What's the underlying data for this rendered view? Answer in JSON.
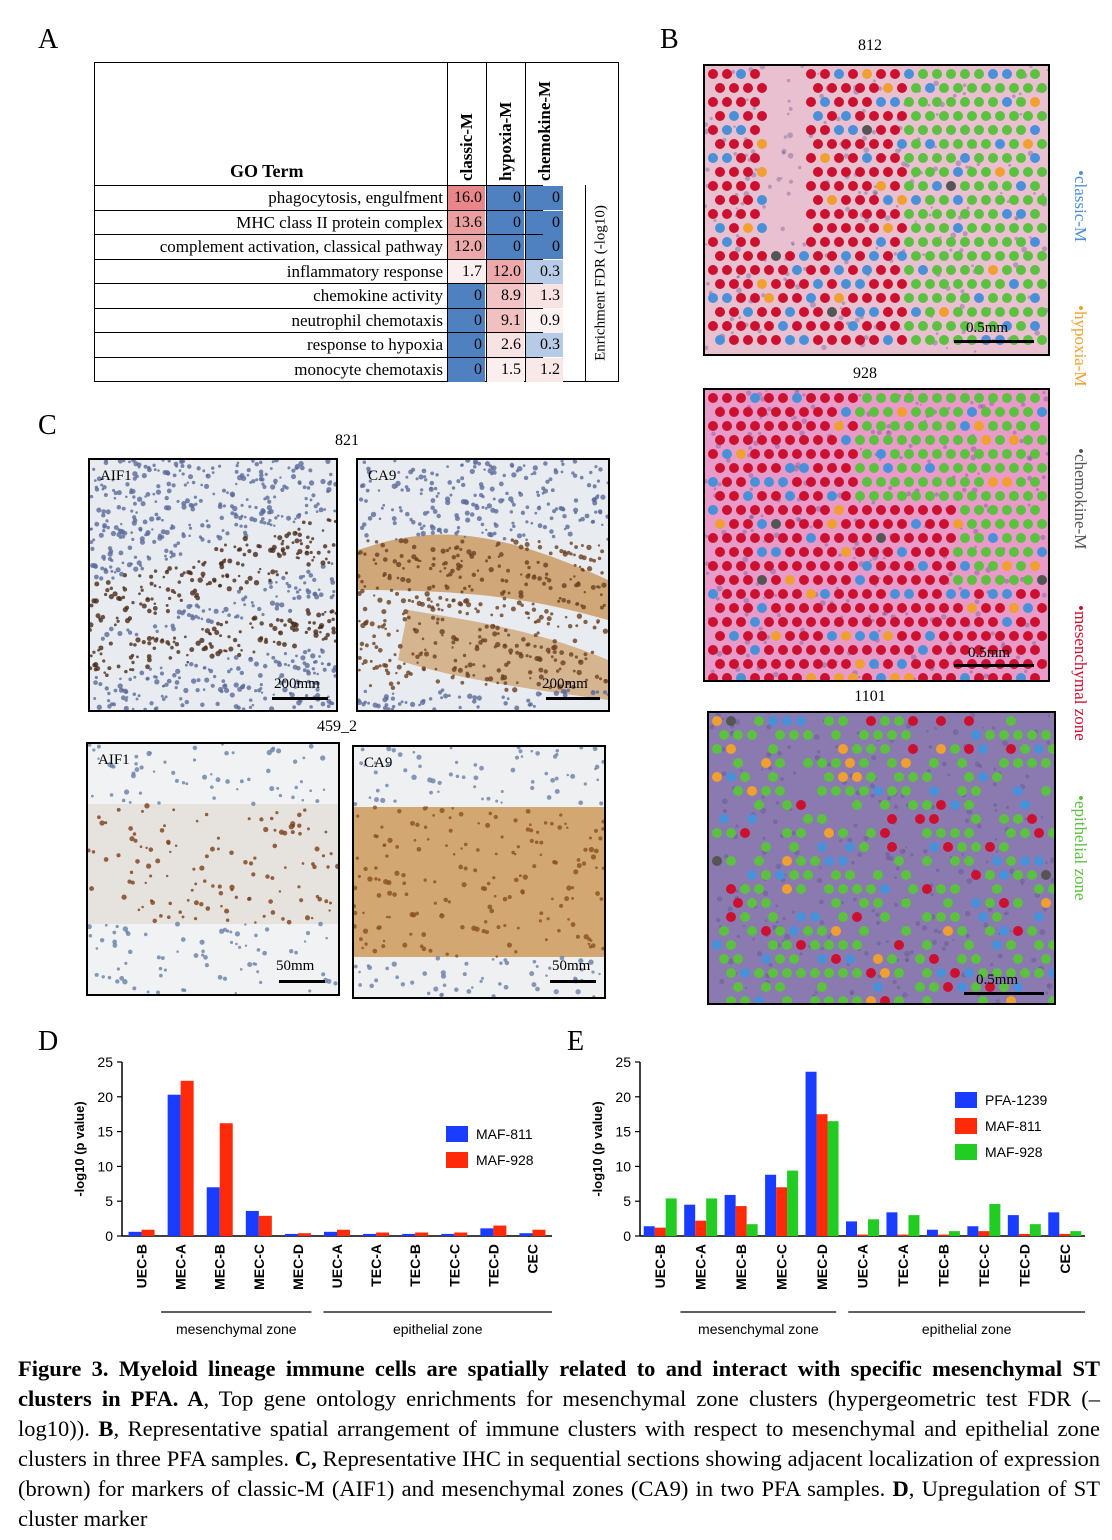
{
  "panels": {
    "A": "A",
    "B": "B",
    "C": "C",
    "D": "D",
    "E": "E"
  },
  "panelA": {
    "header_term": "GO Term",
    "columns": [
      "classic-M",
      "hypoxia-M",
      "chemokine-M"
    ],
    "fdr_label": "Enrichment FDR (-log10)",
    "rows": [
      {
        "term": "phagocytosis, engulfment",
        "values": [
          "16.0",
          "0",
          "0"
        ],
        "colors": [
          "#e8868a",
          "#4f80c0",
          "#4f80c0"
        ]
      },
      {
        "term": "MHC class II protein complex",
        "values": [
          "13.6",
          "0",
          "0"
        ],
        "colors": [
          "#eb9ea0",
          "#4f80c0",
          "#4f80c0"
        ]
      },
      {
        "term": "complement activation, classical pathway",
        "values": [
          "12.0",
          "0",
          "0"
        ],
        "colors": [
          "#eda8aa",
          "#4f80c0",
          "#4f80c0"
        ]
      },
      {
        "term": "inflammatory response",
        "values": [
          "1.7",
          "12.0",
          "0.3"
        ],
        "colors": [
          "#fbeeee",
          "#eda8aa",
          "#b7cbe6"
        ]
      },
      {
        "term": "chemokine activity",
        "values": [
          "0",
          "8.9",
          "1.3"
        ],
        "colors": [
          "#4f80c0",
          "#f1c3c4",
          "#f8e3e3"
        ]
      },
      {
        "term": "neutrophil chemotaxis",
        "values": [
          "0",
          "9.1",
          "0.9"
        ],
        "colors": [
          "#4f80c0",
          "#f1c0c1",
          "#fbf1f1"
        ]
      },
      {
        "term": "response to hypoxia",
        "values": [
          "0",
          "2.6",
          "0.3"
        ],
        "colors": [
          "#4f80c0",
          "#f8e3e3",
          "#b7cbe6"
        ]
      },
      {
        "term": "monocyte chemotaxis",
        "values": [
          "0",
          "1.5",
          "1.2"
        ],
        "colors": [
          "#4f80c0",
          "#fbeeee",
          "#f9e8e8"
        ]
      }
    ]
  },
  "panelB": {
    "samples": [
      "812",
      "928",
      "1101"
    ],
    "scale_label": "0.5mm",
    "legend": [
      "•classic-M",
      "•hypoxia-M",
      "•chemokine-M",
      "•mesenchymal zone",
      "•epithelial zone"
    ],
    "legend_colors": [
      "#4a90d9",
      "#f0a030",
      "#555555",
      "#cc1030",
      "#5cc040"
    ]
  },
  "panelC": {
    "sample_top": "821",
    "sample_bottom": "459_2",
    "stains": [
      "AIF1",
      "CA9",
      "AIF1",
      "CA9"
    ],
    "scales": [
      "200mm",
      "200mm",
      "50mm",
      "50mm"
    ]
  },
  "chartD": {
    "chart_data": {
      "type": "bar",
      "ylabel": "-log10 (p value)",
      "ylim": [
        0,
        25
      ],
      "yticks": [
        "0",
        "5",
        "10",
        "15",
        "20",
        "25"
      ],
      "categories": [
        "UEC-B",
        "MEC-A",
        "MEC-B",
        "MEC-C",
        "MEC-D",
        "UEC-A",
        "TEC-A",
        "TEC-B",
        "TEC-C",
        "TEC-D",
        "CEC"
      ],
      "series": [
        {
          "name": "MAF-811",
          "color": "#1a3cff",
          "values": [
            0.6,
            20.3,
            7.0,
            3.6,
            0.3,
            0.6,
            0.3,
            0.3,
            0.3,
            1.1,
            0.4
          ]
        },
        {
          "name": "MAF-928",
          "color": "#ff2a0a",
          "values": [
            0.9,
            22.3,
            16.2,
            2.9,
            0.4,
            0.9,
            0.5,
            0.5,
            0.5,
            1.5,
            0.9
          ]
        }
      ],
      "groups": [
        "mesenchymal zone",
        "epithelial zone"
      ]
    }
  },
  "chartE": {
    "chart_data": {
      "type": "bar",
      "ylabel": "-log10 (p value)",
      "ylim": [
        0,
        25
      ],
      "yticks": [
        "0",
        "5",
        "10",
        "15",
        "20",
        "25"
      ],
      "categories": [
        "UEC-B",
        "MEC-A",
        "MEC-B",
        "MEC-C",
        "MEC-D",
        "UEC-A",
        "TEC-A",
        "TEC-B",
        "TEC-C",
        "TEC-D",
        "CEC"
      ],
      "series": [
        {
          "name": "PFA-1239",
          "color": "#1a3cff",
          "values": [
            1.4,
            4.5,
            5.9,
            8.8,
            23.6,
            2.1,
            3.4,
            0.9,
            1.4,
            3.0,
            3.4
          ]
        },
        {
          "name": "MAF-811",
          "color": "#ff2a0a",
          "values": [
            1.2,
            2.2,
            4.3,
            7.0,
            17.5,
            0.2,
            0.2,
            0.2,
            0.7,
            0.3,
            0.3
          ]
        },
        {
          "name": "MAF-928",
          "color": "#22cc22",
          "values": [
            5.4,
            5.4,
            1.7,
            9.4,
            16.5,
            2.4,
            3.0,
            0.7,
            4.6,
            1.7,
            0.7
          ]
        }
      ],
      "groups": [
        "mesenchymal zone",
        "epithelial zone"
      ]
    }
  },
  "caption": {
    "bold": "Figure 3. Myeloid lineage immune cells are spatially related to and interact with specific mesenchymal ST clusters in PFA. A",
    "t1": ", Top gene ontology enrichments for mesenchymal zone clusters (hypergeometric test FDR (–log10)). ",
    "b2": "B",
    "t2": ", Representative spatial arrangement of immune clusters with respect to mesenchymal and epithelial zone clusters in three PFA samples. ",
    "b3": "C,",
    "t3": " Representative IHC in sequential sections showing adjacent localization of expression (brown) for markers of classic-M (AIF1) and mesenchymal zones (CA9) in two PFA samples. ",
    "b4": "D",
    "t4": ", Upregulation of ST cluster marker"
  }
}
